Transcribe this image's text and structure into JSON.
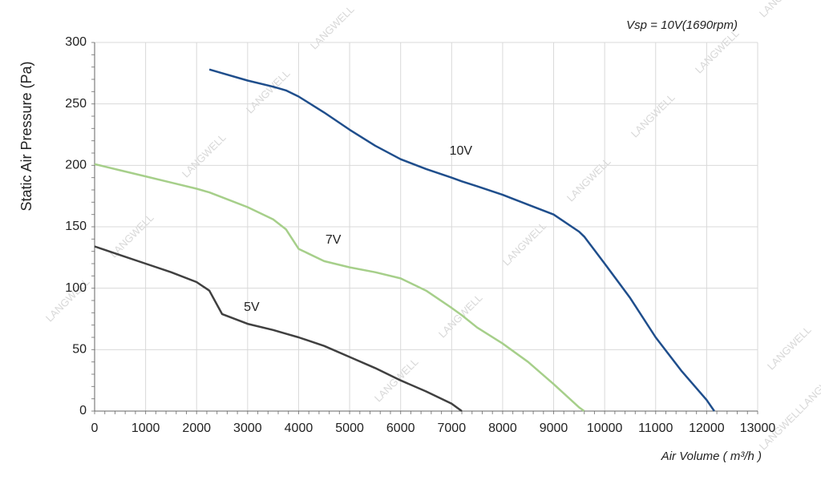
{
  "chart_data": {
    "type": "line",
    "title": "Vsp = 10V(1690rpm)",
    "x_label": "Air Volume ( m³/h )",
    "y_label": "Static Air Pressure  (Pa)",
    "watermark": "LANGWELL",
    "x": [
      0,
      500,
      1000,
      1500,
      2000,
      2250,
      2500,
      3000,
      3500,
      3750,
      4000,
      4500,
      5000,
      5500,
      6000,
      6500,
      7000,
      7200,
      7500,
      8000,
      8500,
      9000,
      9500,
      9600,
      10000,
      10500,
      11000,
      11500,
      12000,
      12150
    ],
    "series": [
      {
        "name": "10V",
        "color": "#1f4e8c",
        "values": [
          null,
          null,
          null,
          null,
          null,
          278,
          275,
          269,
          264,
          261,
          256,
          243,
          229,
          216,
          205,
          197,
          190,
          187,
          183,
          176,
          168,
          160,
          146,
          142,
          120,
          92,
          60,
          33,
          9,
          0
        ]
      },
      {
        "name": "7V",
        "color": "#a6cf8a",
        "values": [
          201,
          196,
          191,
          186,
          181,
          178,
          174,
          166,
          156,
          148,
          132,
          122,
          117,
          113,
          108,
          98,
          84,
          78,
          68,
          55,
          40,
          22,
          3,
          0,
          null,
          null,
          null,
          null,
          null,
          null
        ]
      },
      {
        "name": "5V",
        "color": "#404040",
        "values": [
          134,
          127,
          120,
          113,
          105,
          98,
          79,
          71,
          66,
          63,
          60,
          53,
          44,
          35,
          25,
          16,
          6,
          0,
          null,
          null,
          null,
          null,
          null,
          null,
          null,
          null,
          null,
          null,
          null,
          null
        ]
      }
    ],
    "xlim": [
      0,
      13000
    ],
    "ylim": [
      0,
      300
    ],
    "xticks": [
      0,
      1000,
      2000,
      3000,
      4000,
      5000,
      6000,
      7000,
      8000,
      9000,
      10000,
      11000,
      12000,
      13000
    ],
    "yticks": [
      0,
      50,
      100,
      150,
      200,
      250,
      300
    ],
    "grid": true
  }
}
